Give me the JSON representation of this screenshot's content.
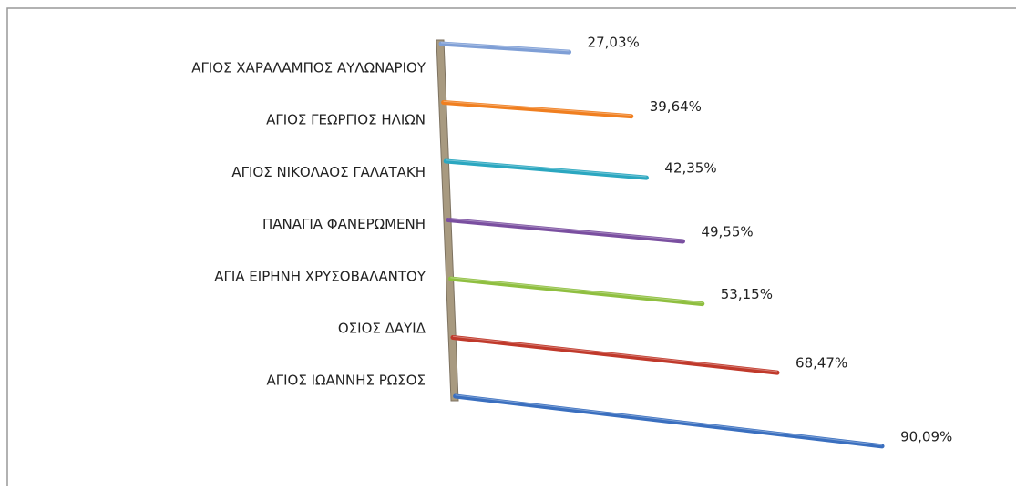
{
  "chart_data": {
    "type": "bar3d",
    "categories": [
      "ΑΓΙΟΣ ΧΑΡΑΛΑΜΠΟΣ ΑΥΛΩΝΑΡΙΟΥ",
      "ΑΓΙΟΣ ΓΕΩΡΓΙΟΣ ΗΛΙΩΝ",
      "ΑΓΙΟΣ ΝΙΚΟΛΑΟΣ ΓΑΛΑΤΑΚΗ",
      "ΠΑΝΑΓΙΑ ΦΑΝΕΡΩΜΕΝΗ",
      "ΑΓΙΑ ΕΙΡΗΝΗ ΧΡΥΣΟΒΑΛΑΝΤΟΥ",
      "ΟΣΙΟΣ ΔΑΥΙΔ",
      "ΑΓΙΟΣ ΙΩΑΝΝΗΣ ΡΩΣΟΣ"
    ],
    "values": [
      27.03,
      39.64,
      42.35,
      49.55,
      53.15,
      68.47,
      90.09
    ],
    "value_labels": [
      "27,03%",
      "39,64%",
      "42,35%",
      "49,55%",
      "53,15%",
      "68,47%",
      "90,09%"
    ],
    "colors": [
      "#7f9fd6",
      "#f07f20",
      "#2ba7c0",
      "#7a4fa0",
      "#8fbf40",
      "#c0392b",
      "#3a6fbf"
    ]
  }
}
